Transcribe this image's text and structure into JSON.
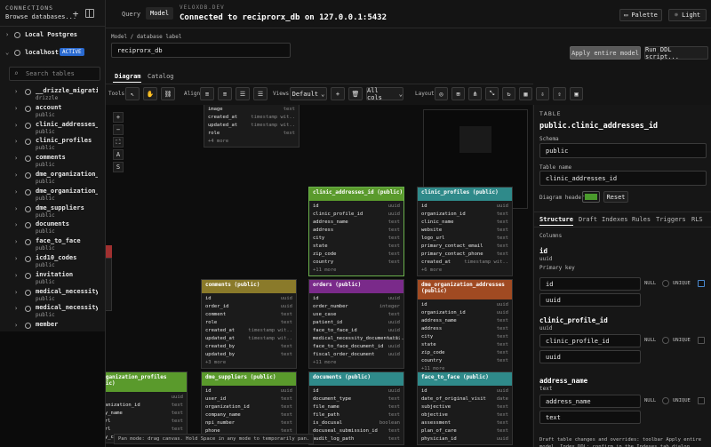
{
  "sidebar": {
    "section": "CONNECTIONS",
    "browse": "Browse databases...",
    "conns": [
      {
        "label": "Local Postgres"
      },
      {
        "label": "localhost",
        "badge": "ACTIVE"
      }
    ],
    "search_placeholder": "Search tables",
    "tables": [
      {
        "name": "__drizzle_migrati...",
        "schema": "drizzle"
      },
      {
        "name": "account",
        "schema": "public"
      },
      {
        "name": "clinic_addresses_...",
        "schema": "public"
      },
      {
        "name": "clinic_profiles",
        "schema": "public"
      },
      {
        "name": "comments",
        "schema": "public"
      },
      {
        "name": "dme_organization_...",
        "schema": "public"
      },
      {
        "name": "dme_organization_...",
        "schema": "public"
      },
      {
        "name": "dme_suppliers",
        "schema": "public"
      },
      {
        "name": "documents",
        "schema": "public"
      },
      {
        "name": "face_to_face",
        "schema": "public"
      },
      {
        "name": "icd10_codes",
        "schema": "public"
      },
      {
        "name": "invitation",
        "schema": "public"
      },
      {
        "name": "medical_necessity...",
        "schema": "public"
      },
      {
        "name": "medical_necessity...",
        "schema": "public"
      },
      {
        "name": "member",
        "schema": ""
      }
    ]
  },
  "top": {
    "tab_query": "Query",
    "tab_model": "Model",
    "brand": "VELOXDB.DEV",
    "status": "Connected to reciprorx_db on 127.0.0.1:5432",
    "palette": "Palette",
    "light": "Light"
  },
  "model": {
    "label": "Model / database label",
    "value": "reciprorx_db",
    "apply": "Apply entire model",
    "run_ddl": "Run DDL script..."
  },
  "subtabs": {
    "diagram": "Diagram",
    "catalog": "Catalog"
  },
  "toolbar": {
    "tools": "Tools",
    "align": "Align",
    "views": "Views",
    "view_default": "Default",
    "all_cols": "All cols",
    "layout": "Layout"
  },
  "canvas_tools": [
    "+",
    "−",
    "⛶",
    "A",
    "S"
  ],
  "status_hint": "Pan mode: drag canvas. Hold Space in any mode to temporarily pan.",
  "tables": {
    "top": {
      "rows": [
        {
          "n": "image",
          "t": "text"
        },
        {
          "n": "created_at",
          "t": "timestamp wit.."
        },
        {
          "n": "updated_at",
          "t": "timestamp wit.."
        },
        {
          "n": "role",
          "t": "text"
        }
      ],
      "more": "+4 more"
    },
    "clinic_addresses": {
      "title": "clinic_addresses_id (public)",
      "rows": [
        {
          "n": "id",
          "t": "uuid"
        },
        {
          "n": "clinic_profile_id",
          "t": "uuid"
        },
        {
          "n": "address_name",
          "t": "text"
        },
        {
          "n": "address",
          "t": "text"
        },
        {
          "n": "city",
          "t": "text"
        },
        {
          "n": "state",
          "t": "text"
        },
        {
          "n": "zip_code",
          "t": "text"
        },
        {
          "n": "country",
          "t": "text"
        }
      ],
      "more": "+11 more"
    },
    "clinic_profiles": {
      "title": "clinic_profiles (public)",
      "rows": [
        {
          "n": "id",
          "t": "uuid"
        },
        {
          "n": "organization_id",
          "t": "text"
        },
        {
          "n": "clinic_name",
          "t": "text"
        },
        {
          "n": "website",
          "t": "text"
        },
        {
          "n": "logo_url",
          "t": "text"
        },
        {
          "n": "primary_contact_email",
          "t": "text"
        },
        {
          "n": "primary_contact_phone",
          "t": "text"
        },
        {
          "n": "created_at",
          "t": "timestamp wit.."
        }
      ],
      "more": "+6 more"
    },
    "comments": {
      "title": "comments (public)",
      "rows": [
        {
          "n": "id",
          "t": "uuid"
        },
        {
          "n": "order_id",
          "t": "uuid"
        },
        {
          "n": "comment",
          "t": "text"
        },
        {
          "n": "role",
          "t": "text"
        },
        {
          "n": "created_at",
          "t": "timestamp wit.."
        },
        {
          "n": "updated_at",
          "t": "timestamp wit.."
        },
        {
          "n": "created_by",
          "t": "text"
        },
        {
          "n": "updated_by",
          "t": "text"
        }
      ],
      "more": "+3 more"
    },
    "orders": {
      "title": "orders (public)",
      "rows": [
        {
          "n": "id",
          "t": "uuid"
        },
        {
          "n": "order_number",
          "t": "integer"
        },
        {
          "n": "use_case",
          "t": "text"
        },
        {
          "n": "patient_id",
          "t": "uuid"
        },
        {
          "n": "face_to_face_id",
          "t": "uuid"
        },
        {
          "n": "medical_necessity_documentati..",
          "t": "uuid"
        },
        {
          "n": "face_to_face_document_id",
          "t": "uuid"
        },
        {
          "n": "fiscal_order_document",
          "t": "uuid"
        }
      ],
      "more": "+11 more"
    },
    "dme_org_addr": {
      "title": "dme_organization_addresses (public)",
      "rows": [
        {
          "n": "id",
          "t": "uuid"
        },
        {
          "n": "organization_id",
          "t": "uuid"
        },
        {
          "n": "address_name",
          "t": "text"
        },
        {
          "n": "address",
          "t": "text"
        },
        {
          "n": "city",
          "t": "text"
        },
        {
          "n": "state",
          "t": "text"
        },
        {
          "n": "zip_code",
          "t": "text"
        },
        {
          "n": "country",
          "t": "text"
        }
      ],
      "more": "+11 more"
    },
    "dme_org_profiles": {
      "title": "_organization_profiles (blic)",
      "rows": [
        {
          "n": "",
          "t": "uuid"
        },
        {
          "n": "organization_id",
          "t": "text"
        },
        {
          "n": "pany_name",
          "t": "text"
        },
        {
          "n": "e_url",
          "t": "text"
        },
        {
          "n": "s_url",
          "t": "text"
        },
        {
          "n": "hary_contact_phone",
          "t": "text"
        }
      ],
      "more": ""
    },
    "dme_suppliers": {
      "title": "dme_suppliers (public)",
      "rows": [
        {
          "n": "id",
          "t": "uuid"
        },
        {
          "n": "user_id",
          "t": "text"
        },
        {
          "n": "organization_id",
          "t": "text"
        },
        {
          "n": "company_name",
          "t": "text"
        },
        {
          "n": "npi_number",
          "t": "text"
        },
        {
          "n": "phone",
          "t": "text"
        }
      ],
      "more": ""
    },
    "documents": {
      "title": "documents (public)",
      "rows": [
        {
          "n": "id",
          "t": "uuid"
        },
        {
          "n": "document_type",
          "t": "text"
        },
        {
          "n": "file_name",
          "t": "text"
        },
        {
          "n": "file_path",
          "t": "text"
        },
        {
          "n": "is_docusal",
          "t": "boolean"
        },
        {
          "n": "docuseal_submission_id",
          "t": "text"
        },
        {
          "n": "audit_log_path",
          "t": "text"
        }
      ],
      "more": ""
    },
    "face_to_face": {
      "title": "face_to_face (public)",
      "rows": [
        {
          "n": "id",
          "t": "uuid"
        },
        {
          "n": "date_of_original_visit",
          "t": "date"
        },
        {
          "n": "subjective",
          "t": "text"
        },
        {
          "n": "objective",
          "t": "text"
        },
        {
          "n": "assessment",
          "t": "text"
        },
        {
          "n": "plan_of_care",
          "t": "text"
        },
        {
          "n": "physician_id",
          "t": "uuid"
        }
      ],
      "more": ""
    }
  },
  "panel": {
    "section": "TABLE",
    "title": "public.clinic_addresses_id",
    "schema_label": "Schema",
    "schema_value": "public",
    "name_label": "Table name",
    "name_value": "clinic_addresses_id",
    "header_label": "Diagram header",
    "reset": "Reset",
    "header_color": "#4a9a2c",
    "tabs": [
      "Structure",
      "Draft",
      "Indexes",
      "Rules",
      "Triggers",
      "RLS"
    ],
    "columns_label": "Columns",
    "cols": [
      {
        "name": "id",
        "type": "uuid",
        "pk": "Primary key",
        "v_name": "id",
        "v_type": "uuid",
        "null": "NULL",
        "unique": "UNIQUE"
      },
      {
        "name": "clinic_profile_id",
        "type": "uuid",
        "v_name": "clinic_profile_id",
        "v_type": "uuid",
        "null": "NULL",
        "unique": "UNIQUE"
      },
      {
        "name": "address_name",
        "type": "text",
        "v_name": "address_name",
        "v_type": "text",
        "null": "NULL",
        "unique": "UNIQUE"
      }
    ],
    "footer": "Draft table changes and overrides: toolbar Apply entire model. Index DDL: confirm in the Indexes tab dialog."
  },
  "colors": {
    "green": "#5a9a2c",
    "teal": "#2f8a8a",
    "gold": "#8a7a2a",
    "purple": "#7a2a8a",
    "rust": "#a04a22",
    "accent": "#2a6ad0"
  }
}
